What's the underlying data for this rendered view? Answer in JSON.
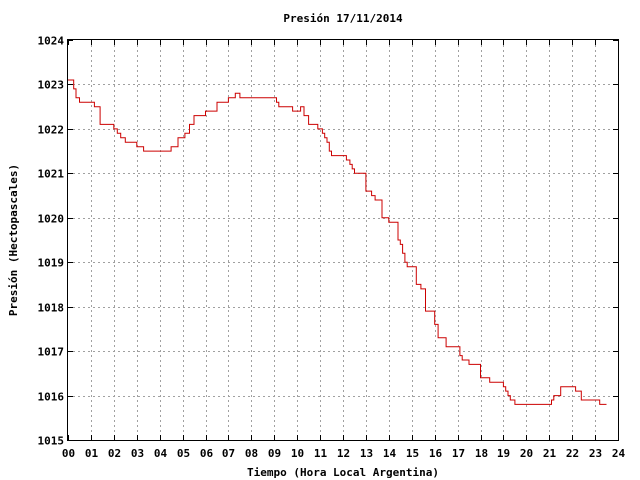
{
  "chart_data": {
    "type": "line",
    "title": "Presión 17/11/2014",
    "xlabel": "Tiempo (Hora Local Argentina)",
    "ylabel": "Presión (Hectopascales)",
    "xlim": [
      0,
      24
    ],
    "ylim": [
      1015,
      1024
    ],
    "x_ticks": [
      "00",
      "01",
      "02",
      "03",
      "04",
      "05",
      "06",
      "07",
      "08",
      "09",
      "10",
      "11",
      "12",
      "13",
      "14",
      "15",
      "16",
      "17",
      "18",
      "19",
      "20",
      "21",
      "22",
      "23",
      "24"
    ],
    "y_ticks": [
      "1015",
      "1016",
      "1017",
      "1018",
      "1019",
      "1020",
      "1021",
      "1022",
      "1023",
      "1024"
    ],
    "grid": true,
    "step": true,
    "series_color": "#cc0000",
    "series": [
      {
        "x": [
          0.0,
          0.25,
          0.35,
          0.5,
          1.0,
          1.15,
          1.4,
          2.0,
          2.15,
          2.3,
          2.5,
          3.0,
          3.3,
          4.0,
          4.5,
          4.8,
          4.95,
          5.1,
          5.3,
          5.5,
          6.0,
          6.5,
          7.0,
          7.3,
          7.5,
          8.0,
          9.0,
          9.1,
          9.2,
          9.8,
          10.0,
          10.15,
          10.3,
          10.5,
          10.9,
          11.0,
          11.1,
          11.2,
          11.3,
          11.4,
          11.5,
          12.0,
          12.15,
          12.3,
          12.4,
          12.5,
          13.0,
          13.1,
          13.25,
          13.4,
          13.7,
          14.0,
          14.2,
          14.4,
          14.5,
          14.6,
          14.7,
          14.8,
          15.0,
          15.2,
          15.4,
          15.6,
          15.9,
          16.0,
          16.15,
          16.25,
          16.5,
          17.0,
          17.1,
          17.2,
          17.3,
          17.5,
          18.0,
          18.2,
          18.4,
          19.0,
          19.1,
          19.2,
          19.3,
          19.5,
          20.0,
          21.0,
          21.1,
          21.2,
          21.3,
          21.5,
          21.9,
          22.0,
          22.15,
          22.4,
          22.8,
          23.0,
          23.2,
          23.5
        ],
        "y": [
          1023.1,
          1022.9,
          1022.7,
          1022.6,
          1022.6,
          1022.5,
          1022.1,
          1022.0,
          1021.9,
          1021.8,
          1021.7,
          1021.6,
          1021.5,
          1021.5,
          1021.6,
          1021.8,
          1021.8,
          1021.9,
          1022.1,
          1022.3,
          1022.4,
          1022.6,
          1022.7,
          1022.8,
          1022.7,
          1022.7,
          1022.7,
          1022.6,
          1022.5,
          1022.4,
          1022.4,
          1022.5,
          1022.3,
          1022.1,
          1022.0,
          1022.0,
          1021.9,
          1021.8,
          1021.7,
          1021.5,
          1021.4,
          1021.4,
          1021.3,
          1021.2,
          1021.1,
          1021.0,
          1020.6,
          1020.6,
          1020.5,
          1020.4,
          1020.0,
          1019.9,
          1019.9,
          1019.5,
          1019.4,
          1019.2,
          1019.0,
          1018.9,
          1018.9,
          1018.5,
          1018.4,
          1017.9,
          1017.9,
          1017.6,
          1017.3,
          1017.3,
          1017.1,
          1017.1,
          1016.9,
          1016.8,
          1016.8,
          1016.7,
          1016.4,
          1016.4,
          1016.3,
          1016.2,
          1016.1,
          1016.0,
          1015.9,
          1015.8,
          1015.8,
          1015.8,
          1015.9,
          1016.0,
          1016.0,
          1016.2,
          1016.2,
          1016.2,
          1016.1,
          1015.9,
          1015.9,
          1015.9,
          1015.8,
          1015.8
        ]
      }
    ]
  }
}
